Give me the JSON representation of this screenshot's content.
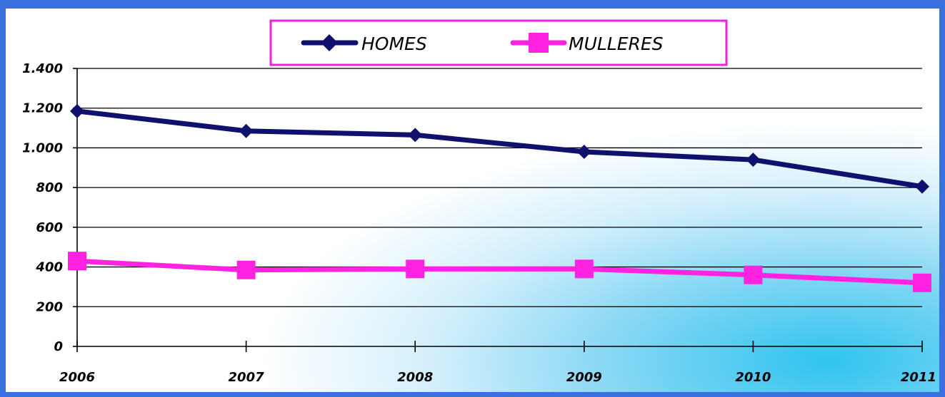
{
  "chart_data": {
    "type": "line",
    "title": "",
    "xlabel": "",
    "ylabel": "",
    "categories": [
      "2006",
      "2007",
      "2008",
      "2009",
      "2010",
      "2011"
    ],
    "ylim": [
      0,
      1400
    ],
    "yticks": [
      0,
      200,
      400,
      600,
      800,
      1000,
      1200,
      1400
    ],
    "ytick_labels": [
      "0",
      "200",
      "400",
      "600",
      "800",
      "1.000",
      "1.200",
      "1.400"
    ],
    "grid": "horizontal",
    "legend_position": "top-center",
    "series": [
      {
        "name": "HOMES",
        "color": "#10106e",
        "marker": "diamond",
        "values": [
          1185,
          1085,
          1065,
          980,
          940,
          805
        ]
      },
      {
        "name": "MULLERES",
        "color": "#ff22e0",
        "marker": "square",
        "values": [
          430,
          385,
          390,
          390,
          360,
          320
        ]
      }
    ],
    "frame_color": "#3a6fe0",
    "legend_border_color": "#ee22dd"
  }
}
